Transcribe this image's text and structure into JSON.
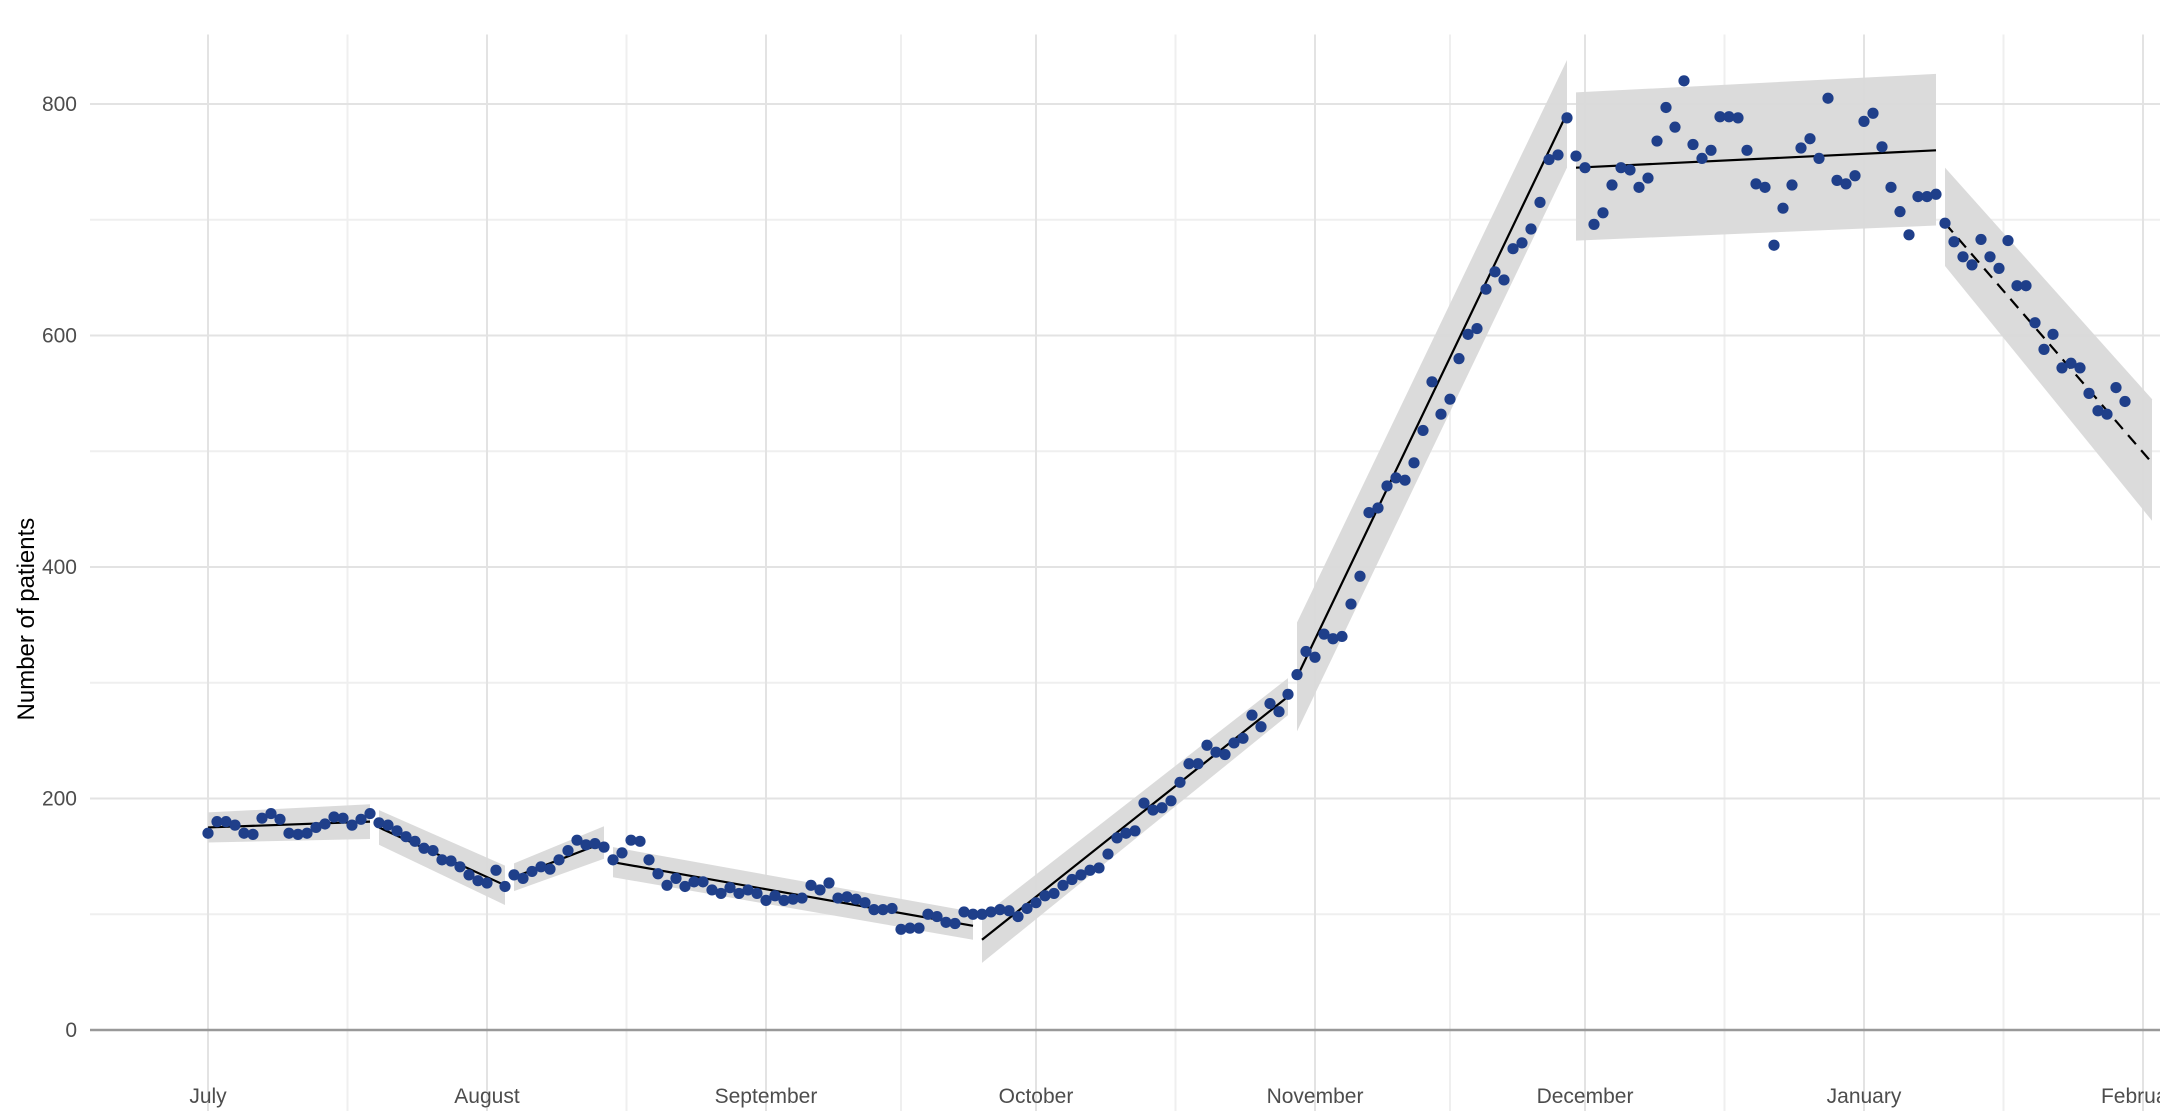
{
  "chart_data": {
    "type": "scatter",
    "title": "",
    "xlabel": "",
    "ylabel": "Number of patients",
    "x_tick_labels": [
      "July",
      "August",
      "September",
      "October",
      "November",
      "December",
      "January",
      "February"
    ],
    "x_range_days": [
      -5,
      216
    ],
    "y_ticks": [
      0,
      200,
      400,
      600,
      800
    ],
    "ylim": [
      -70,
      860
    ],
    "grid": true,
    "points_color": "#1f3f8a",
    "band_color": "#d9d9d9",
    "line_color": "#000000",
    "points": [
      [
        0,
        170
      ],
      [
        1,
        180
      ],
      [
        2,
        180
      ],
      [
        3,
        177
      ],
      [
        4,
        170
      ],
      [
        5,
        169
      ],
      [
        6,
        183
      ],
      [
        7,
        187
      ],
      [
        8,
        182
      ],
      [
        9,
        170
      ],
      [
        10,
        169
      ],
      [
        11,
        170
      ],
      [
        12,
        175
      ],
      [
        13,
        178
      ],
      [
        14,
        184
      ],
      [
        15,
        183
      ],
      [
        16,
        177
      ],
      [
        17,
        182
      ],
      [
        18,
        187
      ],
      [
        19,
        179
      ],
      [
        20,
        177
      ],
      [
        21,
        172
      ],
      [
        22,
        167
      ],
      [
        23,
        163
      ],
      [
        24,
        157
      ],
      [
        25,
        155
      ],
      [
        26,
        147
      ],
      [
        27,
        146
      ],
      [
        28,
        141
      ],
      [
        29,
        134
      ],
      [
        30,
        129
      ],
      [
        31,
        127
      ],
      [
        32,
        138
      ],
      [
        33,
        124
      ],
      [
        34,
        134
      ],
      [
        35,
        131
      ],
      [
        36,
        137
      ],
      [
        37,
        141
      ],
      [
        38,
        139
      ],
      [
        39,
        147
      ],
      [
        40,
        155
      ],
      [
        41,
        164
      ],
      [
        42,
        160
      ],
      [
        43,
        161
      ],
      [
        44,
        158
      ],
      [
        45,
        147
      ],
      [
        46,
        153
      ],
      [
        47,
        164
      ],
      [
        48,
        163
      ],
      [
        49,
        147
      ],
      [
        50,
        135
      ],
      [
        51,
        125
      ],
      [
        52,
        131
      ],
      [
        53,
        124
      ],
      [
        54,
        128
      ],
      [
        55,
        128
      ],
      [
        56,
        121
      ],
      [
        57,
        118
      ],
      [
        58,
        123
      ],
      [
        59,
        118
      ],
      [
        60,
        121
      ],
      [
        61,
        118
      ],
      [
        62,
        112
      ],
      [
        63,
        116
      ],
      [
        64,
        112
      ],
      [
        65,
        113
      ],
      [
        66,
        114
      ],
      [
        67,
        125
      ],
      [
        68,
        121
      ],
      [
        69,
        127
      ],
      [
        70,
        114
      ],
      [
        71,
        115
      ],
      [
        72,
        113
      ],
      [
        73,
        110
      ],
      [
        74,
        104
      ],
      [
        75,
        104
      ],
      [
        76,
        105
      ],
      [
        77,
        87
      ],
      [
        78,
        88
      ],
      [
        79,
        88
      ],
      [
        80,
        100
      ],
      [
        81,
        98
      ],
      [
        82,
        93
      ],
      [
        83,
        92
      ],
      [
        84,
        102
      ],
      [
        85,
        100
      ],
      [
        86,
        100
      ],
      [
        87,
        102
      ],
      [
        88,
        104
      ],
      [
        89,
        103
      ],
      [
        90,
        98
      ],
      [
        91,
        105
      ],
      [
        92,
        110
      ],
      [
        93,
        116
      ],
      [
        94,
        118
      ],
      [
        95,
        125
      ],
      [
        96,
        130
      ],
      [
        97,
        134
      ],
      [
        98,
        138
      ],
      [
        99,
        140
      ],
      [
        100,
        152
      ],
      [
        101,
        166
      ],
      [
        102,
        170
      ],
      [
        103,
        172
      ],
      [
        104,
        196
      ],
      [
        105,
        190
      ],
      [
        106,
        192
      ],
      [
        107,
        198
      ],
      [
        108,
        214
      ],
      [
        109,
        230
      ],
      [
        110,
        230
      ],
      [
        111,
        246
      ],
      [
        112,
        240
      ],
      [
        113,
        238
      ],
      [
        114,
        248
      ],
      [
        115,
        252
      ],
      [
        116,
        272
      ],
      [
        117,
        262
      ],
      [
        118,
        282
      ],
      [
        119,
        275
      ],
      [
        120,
        290
      ],
      [
        121,
        307
      ],
      [
        122,
        327
      ],
      [
        123,
        322
      ],
      [
        124,
        342
      ],
      [
        125,
        338
      ],
      [
        126,
        340
      ],
      [
        127,
        368
      ],
      [
        128,
        392
      ],
      [
        129,
        447
      ],
      [
        130,
        451
      ],
      [
        131,
        470
      ],
      [
        132,
        477
      ],
      [
        133,
        475
      ],
      [
        134,
        490
      ],
      [
        135,
        518
      ],
      [
        136,
        560
      ],
      [
        137,
        532
      ],
      [
        138,
        545
      ],
      [
        139,
        580
      ],
      [
        140,
        601
      ],
      [
        141,
        606
      ],
      [
        142,
        640
      ],
      [
        143,
        655
      ],
      [
        144,
        648
      ],
      [
        145,
        675
      ],
      [
        146,
        680
      ],
      [
        147,
        692
      ],
      [
        148,
        715
      ],
      [
        149,
        752
      ],
      [
        150,
        756
      ],
      [
        151,
        788
      ],
      [
        152,
        755
      ],
      [
        153,
        745
      ],
      [
        154,
        696
      ],
      [
        155,
        706
      ],
      [
        156,
        730
      ],
      [
        157,
        745
      ],
      [
        158,
        743
      ],
      [
        159,
        728
      ],
      [
        160,
        736
      ],
      [
        161,
        768
      ],
      [
        162,
        797
      ],
      [
        163,
        780
      ],
      [
        164,
        820
      ],
      [
        165,
        765
      ],
      [
        166,
        753
      ],
      [
        167,
        760
      ],
      [
        168,
        789
      ],
      [
        169,
        789
      ],
      [
        170,
        788
      ],
      [
        171,
        760
      ],
      [
        172,
        731
      ],
      [
        173,
        728
      ],
      [
        174,
        678
      ],
      [
        175,
        710
      ],
      [
        176,
        730
      ],
      [
        177,
        762
      ],
      [
        178,
        770
      ],
      [
        179,
        753
      ],
      [
        180,
        805
      ],
      [
        181,
        734
      ],
      [
        182,
        731
      ],
      [
        183,
        738
      ],
      [
        184,
        785
      ],
      [
        185,
        792
      ],
      [
        186,
        763
      ],
      [
        187,
        728
      ],
      [
        188,
        707
      ],
      [
        189,
        687
      ],
      [
        190,
        720
      ],
      [
        191,
        720
      ],
      [
        192,
        722
      ],
      [
        193,
        697
      ],
      [
        194,
        681
      ],
      [
        195,
        668
      ],
      [
        196,
        661
      ],
      [
        197,
        683
      ],
      [
        198,
        668
      ],
      [
        199,
        658
      ],
      [
        200,
        682
      ],
      [
        201,
        643
      ],
      [
        202,
        643
      ],
      [
        203,
        611
      ],
      [
        204,
        588
      ],
      [
        205,
        601
      ],
      [
        206,
        572
      ],
      [
        207,
        576
      ],
      [
        208,
        572
      ],
      [
        209,
        550
      ],
      [
        210,
        535
      ],
      [
        211,
        532
      ],
      [
        212,
        555
      ],
      [
        213,
        543
      ]
    ],
    "segments": [
      {
        "x": [
          0,
          18
        ],
        "y": [
          175,
          180
        ],
        "lo": [
          162,
          165
        ],
        "hi": [
          188,
          195
        ],
        "dashed": false
      },
      {
        "x": [
          19,
          33
        ],
        "y": [
          175,
          125
        ],
        "lo": [
          160,
          108
        ],
        "hi": [
          190,
          142
        ],
        "dashed": false
      },
      {
        "x": [
          34,
          44
        ],
        "y": [
          132,
          162
        ],
        "lo": [
          120,
          148
        ],
        "hi": [
          144,
          176
        ],
        "dashed": false
      },
      {
        "x": [
          45,
          85
        ],
        "y": [
          145,
          90
        ],
        "lo": [
          132,
          78
        ],
        "hi": [
          158,
          102
        ],
        "dashed": false
      },
      {
        "x": [
          86,
          120
        ],
        "y": [
          78,
          288
        ],
        "lo": [
          58,
          272
        ],
        "hi": [
          98,
          304
        ],
        "dashed": false
      },
      {
        "x": [
          121,
          151
        ],
        "y": [
          305,
          792
        ],
        "lo": [
          258,
          745
        ],
        "hi": [
          352,
          838
        ],
        "dashed": false
      },
      {
        "x": [
          152,
          192
        ],
        "y": [
          745,
          760
        ],
        "lo": [
          682,
          695
        ],
        "hi": [
          810,
          826
        ],
        "dashed": false
      },
      {
        "x": [
          193,
          216
        ],
        "y": [
          697,
          490
        ],
        "lo": [
          660,
          440
        ],
        "hi": [
          745,
          545
        ],
        "dashed": true
      }
    ]
  }
}
